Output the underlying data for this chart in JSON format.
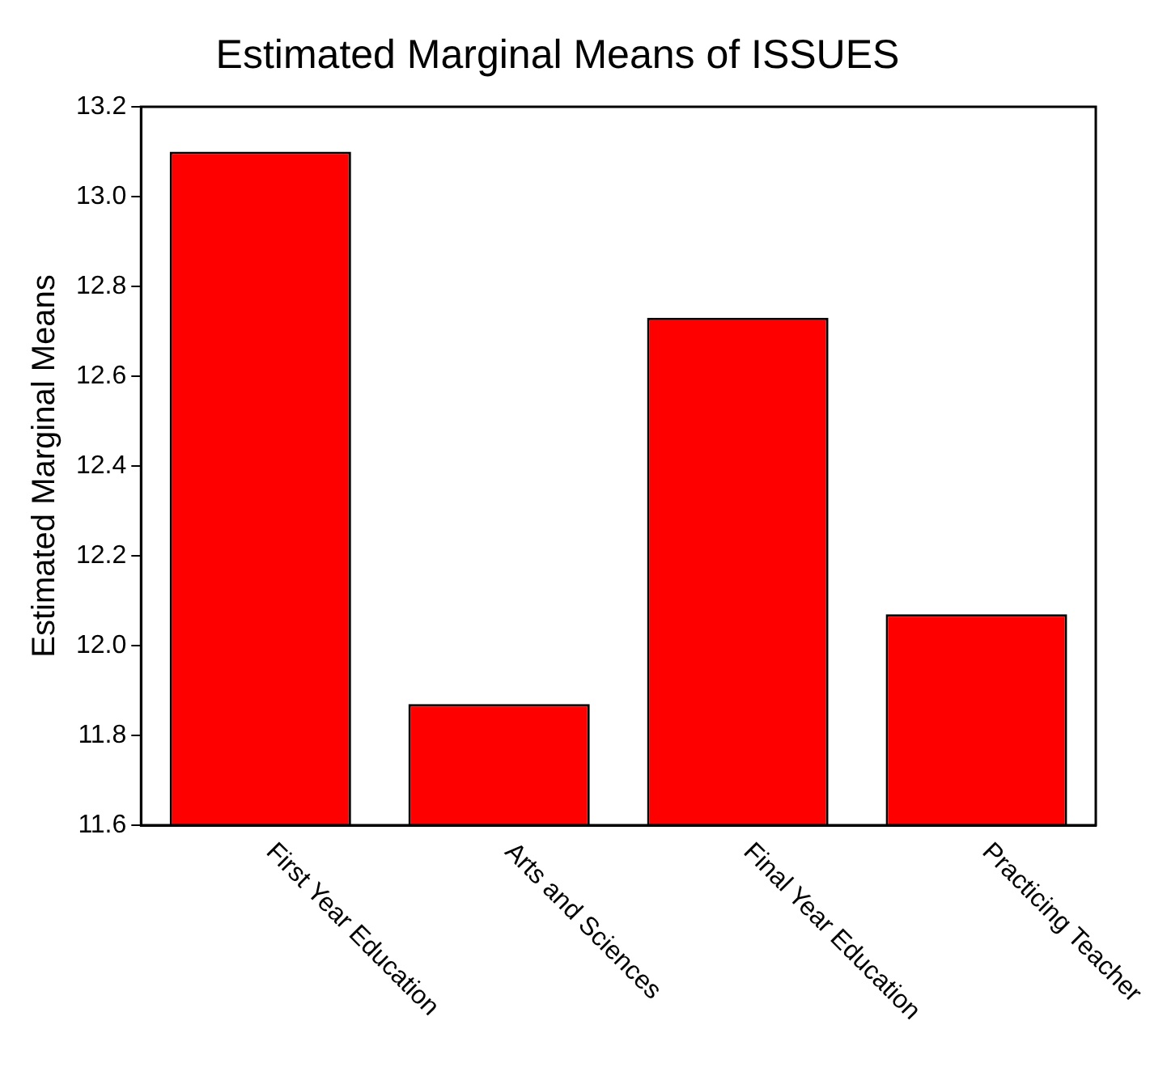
{
  "chart_data": {
    "type": "bar",
    "title": "Estimated Marginal Means of ISSUES",
    "ylabel": "Estimated Marginal Means",
    "categories": [
      "First Year Education",
      "Arts and Sciences",
      "Final Year Education",
      "Practicing Teacher"
    ],
    "values": [
      13.1,
      11.87,
      12.73,
      12.07
    ],
    "color": "#ff0000",
    "ylim": [
      11.6,
      13.2
    ],
    "yticks": [
      11.6,
      11.8,
      {
        "value": 12,
        "label": "12.0"
      },
      12.2,
      12.4,
      12.6,
      12.8,
      {
        "value": 13,
        "label": "13.0"
      },
      13.2
    ],
    "grid": false,
    "legend": false
  }
}
